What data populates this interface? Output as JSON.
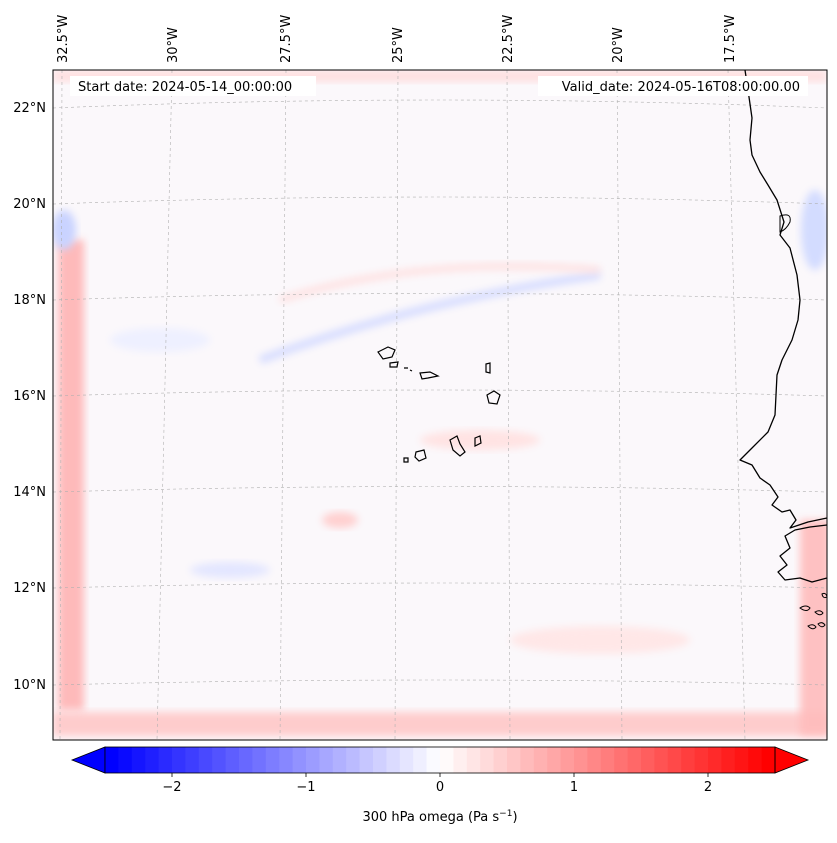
{
  "header": {
    "start_date": "Start date: 2024-05-14_00:00:00",
    "valid_date": "Valid_date: 2024-05-16T08:00:00.00"
  },
  "map": {
    "longitude_labels": [
      "32.5°W",
      "30°W",
      "27.5°W",
      "25°W",
      "22.5°W",
      "20°W",
      "17.5°W"
    ],
    "latitude_labels": [
      "22°N",
      "20°N",
      "18°N",
      "16°N",
      "14°N",
      "12°N",
      "10°N"
    ],
    "extent": {
      "lon_min": -33.0,
      "lon_max": -15.9,
      "lat_min": 8.9,
      "lat_max": 22.7
    },
    "field": "300 hPa omega"
  },
  "colorbar": {
    "label_prefix": "300 hPa omega (Pa s",
    "label_exp": "−1",
    "label_suffix": ")",
    "tick_labels": [
      "−2",
      "−1",
      "0",
      "1",
      "2"
    ],
    "tick_values": [
      -2,
      -1,
      0,
      1,
      2
    ],
    "range": [
      -2.5,
      2.5
    ],
    "colors": {
      "negative": "#0000ff",
      "zero": "#ffffff",
      "positive": "#ff0000"
    }
  },
  "colors": {
    "coastline": "#000000",
    "gridline": "#b0b0b0"
  }
}
